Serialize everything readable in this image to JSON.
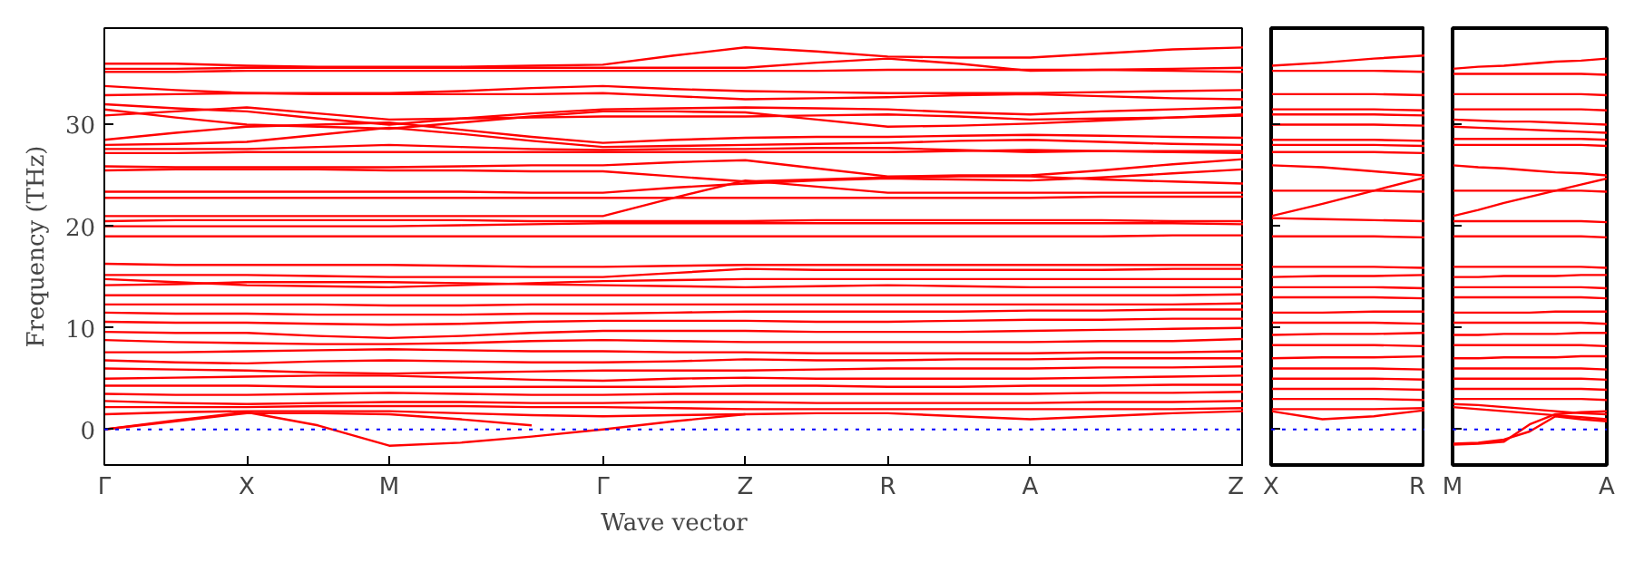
{
  "chart_data": [
    {
      "type": "line",
      "xlabel": "Wave vector",
      "ylabel": "Frequency (THz)",
      "color": "#ff0000",
      "categories": [
        "Γ",
        null,
        "X",
        null,
        "M",
        null,
        null,
        "Γ",
        null,
        "Z",
        null,
        "R",
        null,
        "A",
        null,
        null,
        "Z"
      ],
      "ylim": [
        -3.5,
        39.5
      ],
      "yticks": [
        0,
        10,
        20,
        30
      ],
      "ref_lines": [
        {
          "axis": "y",
          "value": 0,
          "color": "#0000ff",
          "line_style": "dotted"
        }
      ],
      "series": [
        {
          "values": [
            36.0,
            36.0,
            35.8,
            35.7,
            35.7,
            35.7,
            35.8,
            35.9,
            36.8,
            37.6,
            37.2,
            36.7,
            36.6,
            36.6,
            37.0,
            37.4,
            37.6
          ]
        },
        {
          "values": [
            35.5,
            35.5,
            35.6,
            35.6,
            35.6,
            35.6,
            35.6,
            35.6,
            35.6,
            35.6,
            36.1,
            36.5,
            36.0,
            35.3,
            35.4,
            35.5,
            35.6
          ]
        },
        {
          "values": [
            35.2,
            35.2,
            35.3,
            35.3,
            35.3,
            35.3,
            35.3,
            35.3,
            35.3,
            35.3,
            35.3,
            35.4,
            35.4,
            35.4,
            35.4,
            35.3,
            35.2
          ]
        },
        {
          "values": [
            33.8,
            33.4,
            33.1,
            33.1,
            33.1,
            33.3,
            33.6,
            33.8,
            33.5,
            33.3,
            33.2,
            33.1,
            33.1,
            33.1,
            33.2,
            33.3,
            33.4
          ]
        },
        {
          "values": [
            32.9,
            33.0,
            33.1,
            33.0,
            33.0,
            33.0,
            33.0,
            33.1,
            32.8,
            32.5,
            32.6,
            32.7,
            32.9,
            33.0,
            32.8,
            32.6,
            32.5
          ]
        },
        {
          "values": [
            32.0,
            31.6,
            31.3,
            30.6,
            30.0,
            30.6,
            31.1,
            31.5,
            31.6,
            31.7,
            31.6,
            31.5,
            31.2,
            31.0,
            31.3,
            31.5,
            31.7
          ]
        },
        {
          "values": [
            31.5,
            30.7,
            30.0,
            29.8,
            29.6,
            30.2,
            30.8,
            31.3,
            31.3,
            31.2,
            30.5,
            29.8,
            29.9,
            30.1,
            30.4,
            30.7,
            31.0
          ]
        },
        {
          "values": [
            30.9,
            31.3,
            31.7,
            31.1,
            30.5,
            30.6,
            30.7,
            30.8,
            30.8,
            30.8,
            30.9,
            31.0,
            30.8,
            30.5,
            30.6,
            30.7,
            30.9
          ]
        },
        {
          "values": [
            28.5,
            29.2,
            29.8,
            30.0,
            30.2,
            29.5,
            28.8,
            28.2,
            28.5,
            28.7,
            28.8,
            28.8,
            28.9,
            29.0,
            28.9,
            28.8,
            28.7
          ]
        },
        {
          "values": [
            28.0,
            28.1,
            28.3,
            29.0,
            29.7,
            29.1,
            28.4,
            27.8,
            27.9,
            28.0,
            28.1,
            28.2,
            28.4,
            28.5,
            28.3,
            28.1,
            28.0
          ]
        },
        {
          "values": [
            27.6,
            27.6,
            27.6,
            27.8,
            28.0,
            27.8,
            27.6,
            27.5,
            27.6,
            27.6,
            27.7,
            27.7,
            27.5,
            27.3,
            27.4,
            27.4,
            27.4
          ]
        },
        {
          "values": [
            27.2,
            27.2,
            27.3,
            27.3,
            27.3,
            27.3,
            27.3,
            27.3,
            27.3,
            27.3,
            27.3,
            27.3,
            27.4,
            27.5,
            27.4,
            27.3,
            27.2
          ]
        },
        {
          "values": [
            25.9,
            25.8,
            25.8,
            25.8,
            25.8,
            25.9,
            26.0,
            26.0,
            26.3,
            26.5,
            25.7,
            24.9,
            25.0,
            25.0,
            25.5,
            26.1,
            26.6
          ]
        },
        {
          "values": [
            25.5,
            25.6,
            25.6,
            25.6,
            25.5,
            25.5,
            25.4,
            25.4,
            24.9,
            24.4,
            24.6,
            24.8,
            24.9,
            24.9,
            24.6,
            24.4,
            24.2
          ]
        },
        {
          "values": [
            23.4,
            23.4,
            23.4,
            23.4,
            23.4,
            23.4,
            23.3,
            23.3,
            23.8,
            24.2,
            24.5,
            24.7,
            24.6,
            24.5,
            24.8,
            25.2,
            25.6
          ]
        },
        {
          "values": [
            22.8,
            22.8,
            22.8,
            22.8,
            22.8,
            22.8,
            22.8,
            22.8,
            22.8,
            22.8,
            22.8,
            22.8,
            22.8,
            22.8,
            22.9,
            22.9,
            22.9
          ]
        },
        {
          "values": [
            21.0,
            21.0,
            21.0,
            21.0,
            21.0,
            21.0,
            21.0,
            21.0,
            22.8,
            24.5,
            23.9,
            23.3,
            23.3,
            23.3,
            23.3,
            23.3,
            23.3
          ]
        },
        {
          "values": [
            20.5,
            20.6,
            20.6,
            20.6,
            20.6,
            20.6,
            20.5,
            20.5,
            20.5,
            20.5,
            20.6,
            20.6,
            20.6,
            20.6,
            20.6,
            20.5,
            20.5
          ]
        },
        {
          "values": [
            20.0,
            20.0,
            20.0,
            20.0,
            20.0,
            20.1,
            20.2,
            20.3,
            20.3,
            20.3,
            20.3,
            20.3,
            20.3,
            20.3,
            20.3,
            20.3,
            20.2
          ]
        },
        {
          "values": [
            19.0,
            19.0,
            19.0,
            19.0,
            19.0,
            19.0,
            19.0,
            19.0,
            19.0,
            19.0,
            19.0,
            19.0,
            19.0,
            19.0,
            19.0,
            19.1,
            19.1
          ]
        },
        {
          "values": [
            16.3,
            16.2,
            16.2,
            16.2,
            16.2,
            16.1,
            16.0,
            16.0,
            16.1,
            16.2,
            16.2,
            16.2,
            16.2,
            16.2,
            16.2,
            16.2,
            16.2
          ]
        },
        {
          "values": [
            15.2,
            15.2,
            15.2,
            15.1,
            15.0,
            15.0,
            15.0,
            15.0,
            15.4,
            15.8,
            15.7,
            15.7,
            15.7,
            15.7,
            15.7,
            15.8,
            15.8
          ]
        },
        {
          "values": [
            14.8,
            14.5,
            14.2,
            14.1,
            14.0,
            14.2,
            14.4,
            14.6,
            14.7,
            14.8,
            14.8,
            14.8,
            14.8,
            14.8,
            14.8,
            14.8,
            14.8
          ]
        },
        {
          "values": [
            14.2,
            14.3,
            14.5,
            14.5,
            14.5,
            14.4,
            14.3,
            14.2,
            14.1,
            14.0,
            14.1,
            14.2,
            14.1,
            14.0,
            14.0,
            14.0,
            14.0
          ]
        },
        {
          "values": [
            13.2,
            13.2,
            13.2,
            13.2,
            13.2,
            13.2,
            13.2,
            13.2,
            13.2,
            13.2,
            13.2,
            13.2,
            13.2,
            13.2,
            13.2,
            13.2,
            13.3
          ]
        },
        {
          "values": [
            12.3,
            12.3,
            12.3,
            12.3,
            12.2,
            12.2,
            12.3,
            12.3,
            12.3,
            12.3,
            12.3,
            12.3,
            12.3,
            12.3,
            12.3,
            12.3,
            12.4
          ]
        },
        {
          "values": [
            11.5,
            11.4,
            11.4,
            11.3,
            11.3,
            11.3,
            11.4,
            11.4,
            11.5,
            11.6,
            11.6,
            11.6,
            11.6,
            11.7,
            11.7,
            11.8,
            11.8
          ]
        },
        {
          "values": [
            10.6,
            10.5,
            10.5,
            10.4,
            10.3,
            10.4,
            10.6,
            10.7,
            10.7,
            10.7,
            10.6,
            10.6,
            10.7,
            10.8,
            10.8,
            10.9,
            10.9
          ]
        },
        {
          "values": [
            9.6,
            9.5,
            9.5,
            9.2,
            9.0,
            9.2,
            9.5,
            9.7,
            9.7,
            9.7,
            9.6,
            9.6,
            9.6,
            9.7,
            9.8,
            9.9,
            10.0
          ]
        },
        {
          "values": [
            8.8,
            8.6,
            8.5,
            8.4,
            8.4,
            8.5,
            8.7,
            8.8,
            8.7,
            8.6,
            8.6,
            8.6,
            8.6,
            8.6,
            8.7,
            8.7,
            8.9
          ]
        },
        {
          "values": [
            7.6,
            7.6,
            7.7,
            7.8,
            7.9,
            7.8,
            7.7,
            7.7,
            7.6,
            7.6,
            7.5,
            7.5,
            7.5,
            7.5,
            7.6,
            7.6,
            7.7
          ]
        },
        {
          "values": [
            6.8,
            6.6,
            6.5,
            6.7,
            6.8,
            6.7,
            6.6,
            6.6,
            6.7,
            6.9,
            6.8,
            6.8,
            6.9,
            6.9,
            7.0,
            7.0,
            7.0
          ]
        },
        {
          "values": [
            6.0,
            5.9,
            5.8,
            5.6,
            5.5,
            5.6,
            5.7,
            5.8,
            5.8,
            5.8,
            5.9,
            6.0,
            6.0,
            6.0,
            6.1,
            6.1,
            6.2
          ]
        },
        {
          "values": [
            5.0,
            5.1,
            5.2,
            5.3,
            5.3,
            5.1,
            4.9,
            4.8,
            5.0,
            5.1,
            5.0,
            5.0,
            5.0,
            5.0,
            5.1,
            5.2,
            5.3
          ]
        },
        {
          "values": [
            4.3,
            4.3,
            4.3,
            4.2,
            4.2,
            4.2,
            4.2,
            4.2,
            4.2,
            4.3,
            4.3,
            4.2,
            4.2,
            4.3,
            4.3,
            4.4,
            4.4
          ]
        },
        {
          "values": [
            3.5,
            3.4,
            3.4,
            3.5,
            3.6,
            3.5,
            3.4,
            3.4,
            3.5,
            3.5,
            3.5,
            3.5,
            3.5,
            3.5,
            3.6,
            3.6,
            3.7
          ]
        },
        {
          "values": [
            2.8,
            2.6,
            2.5,
            2.6,
            2.7,
            2.7,
            2.6,
            2.6,
            2.7,
            2.7,
            2.6,
            2.6,
            2.6,
            2.6,
            2.7,
            2.7,
            2.8
          ]
        },
        {
          "values": [
            2.2,
            2.2,
            2.2,
            2.3,
            2.3,
            2.3,
            2.2,
            2.2,
            2.1,
            2.0,
            2.0,
            2.0,
            2.0,
            2.0,
            2.0,
            2.0,
            2.1
          ]
        },
        {
          "values": [
            1.5,
            1.7,
            1.8,
            1.8,
            1.8,
            1.6,
            1.4,
            1.3,
            1.4,
            1.5,
            1.6,
            1.6,
            1.3,
            1.0,
            1.3,
            1.6,
            1.8
          ]
        },
        {
          "values": [
            0,
            0.9,
            1.7,
            0.4,
            -1.6,
            -1.3,
            -0.7,
            0,
            0.8,
            1.5,
            null,
            null,
            null,
            null,
            null,
            null,
            null
          ]
        },
        {
          "values": [
            0,
            0.8,
            1.6,
            1.6,
            1.5,
            1.0,
            0.4,
            null,
            null,
            null,
            null,
            null,
            null,
            null,
            null,
            null,
            null
          ]
        }
      ]
    },
    {
      "type": "line",
      "color": "#ff0000",
      "categories": [
        "X",
        null,
        null,
        "R"
      ],
      "ylim": [
        -3.5,
        39.5
      ],
      "yticks": [
        0,
        10,
        20,
        30
      ],
      "tick_labels": "x",
      "ref_lines": [
        {
          "axis": "y",
          "value": 0,
          "color": "#0000ff",
          "line_style": "dotted"
        }
      ],
      "series": [
        {
          "values": [
            35.8,
            36.1,
            36.5,
            36.8
          ]
        },
        {
          "values": [
            35.3,
            35.3,
            35.3,
            35.2
          ]
        },
        {
          "values": [
            33.0,
            33.0,
            33.0,
            32.9
          ]
        },
        {
          "values": [
            31.5,
            31.5,
            31.5,
            31.4
          ]
        },
        {
          "values": [
            31.0,
            31.0,
            31.0,
            30.9
          ]
        },
        {
          "values": [
            30.0,
            30.0,
            30.0,
            29.9
          ]
        },
        {
          "values": [
            28.5,
            28.5,
            28.5,
            28.4
          ]
        },
        {
          "values": [
            28.0,
            28.0,
            28.0,
            27.9
          ]
        },
        {
          "values": [
            27.3,
            27.3,
            27.3,
            27.2
          ]
        },
        {
          "values": [
            26.0,
            25.8,
            25.4,
            25.0
          ]
        },
        {
          "values": [
            23.5,
            23.5,
            23.5,
            23.4
          ]
        },
        {
          "values": [
            21.0,
            22.2,
            23.5,
            24.8
          ]
        },
        {
          "values": [
            20.8,
            20.7,
            20.6,
            20.5
          ]
        },
        {
          "values": [
            19.0,
            19.0,
            19.0,
            18.9
          ]
        },
        {
          "values": [
            16.0,
            16.0,
            16.0,
            15.9
          ]
        },
        {
          "values": [
            15.0,
            15.1,
            15.1,
            15.2
          ]
        },
        {
          "values": [
            14.0,
            14.0,
            14.0,
            13.9
          ]
        },
        {
          "values": [
            13.0,
            13.0,
            13.0,
            12.9
          ]
        },
        {
          "values": [
            11.5,
            11.5,
            11.6,
            11.6
          ]
        },
        {
          "values": [
            10.5,
            10.5,
            10.5,
            10.4
          ]
        },
        {
          "values": [
            9.3,
            9.4,
            9.4,
            9.5
          ]
        },
        {
          "values": [
            8.3,
            8.3,
            8.3,
            8.2
          ]
        },
        {
          "values": [
            7.0,
            7.1,
            7.1,
            7.2
          ]
        },
        {
          "values": [
            6.0,
            6.0,
            6.0,
            5.9
          ]
        },
        {
          "values": [
            5.0,
            5.0,
            5.0,
            4.9
          ]
        },
        {
          "values": [
            4.0,
            4.0,
            4.0,
            3.9
          ]
        },
        {
          "values": [
            3.0,
            3.0,
            3.0,
            2.9
          ]
        },
        {
          "values": [
            2.0,
            2.0,
            2.0,
            2.1
          ]
        },
        {
          "values": [
            1.8,
            1.0,
            1.3,
            1.9
          ]
        }
      ]
    },
    {
      "type": "line",
      "color": "#ff0000",
      "categories": [
        "M",
        null,
        null,
        null,
        null,
        null,
        "A"
      ],
      "ylim": [
        -3.5,
        39.5
      ],
      "yticks": [
        0,
        10,
        20,
        30
      ],
      "tick_labels": "x",
      "ref_lines": [
        {
          "axis": "y",
          "value": 0,
          "color": "#0000ff",
          "line_style": "dotted"
        }
      ],
      "series": [
        {
          "values": [
            35.5,
            35.7,
            35.8,
            36.0,
            36.2,
            36.3,
            36.5
          ]
        },
        {
          "values": [
            35.0,
            35.0,
            35.0,
            35.0,
            35.0,
            35.0,
            34.9
          ]
        },
        {
          "values": [
            33.0,
            33.0,
            33.0,
            33.0,
            33.0,
            33.0,
            32.9
          ]
        },
        {
          "values": [
            31.5,
            31.5,
            31.5,
            31.5,
            31.5,
            31.5,
            31.4
          ]
        },
        {
          "values": [
            30.5,
            30.4,
            30.3,
            30.3,
            30.2,
            30.1,
            30.0
          ]
        },
        {
          "values": [
            29.8,
            29.7,
            29.6,
            29.5,
            29.4,
            29.3,
            29.2
          ]
        },
        {
          "values": [
            28.6,
            28.6,
            28.6,
            28.6,
            28.6,
            28.6,
            28.5
          ]
        },
        {
          "values": [
            28.0,
            28.0,
            28.0,
            28.0,
            28.0,
            28.0,
            27.9
          ]
        },
        {
          "values": [
            26.0,
            25.8,
            25.7,
            25.5,
            25.3,
            25.2,
            25.0
          ]
        },
        {
          "values": [
            23.5,
            23.5,
            23.5,
            23.5,
            23.5,
            23.5,
            23.4
          ]
        },
        {
          "values": [
            21.0,
            21.6,
            22.3,
            22.9,
            23.5,
            24.1,
            24.7
          ]
        },
        {
          "values": [
            20.5,
            20.5,
            20.5,
            20.5,
            20.5,
            20.5,
            20.4
          ]
        },
        {
          "values": [
            19.0,
            19.0,
            19.0,
            19.0,
            19.0,
            19.0,
            18.9
          ]
        },
        {
          "values": [
            16.0,
            16.0,
            16.0,
            16.0,
            16.0,
            16.0,
            15.9
          ]
        },
        {
          "values": [
            15.0,
            15.0,
            15.1,
            15.1,
            15.1,
            15.2,
            15.2
          ]
        },
        {
          "values": [
            14.0,
            14.0,
            14.0,
            14.0,
            14.0,
            14.0,
            13.9
          ]
        },
        {
          "values": [
            13.0,
            13.0,
            13.0,
            13.0,
            13.0,
            13.0,
            12.9
          ]
        },
        {
          "values": [
            11.5,
            11.5,
            11.5,
            11.5,
            11.6,
            11.6,
            11.6
          ]
        },
        {
          "values": [
            10.5,
            10.5,
            10.5,
            10.5,
            10.5,
            10.5,
            10.4
          ]
        },
        {
          "values": [
            9.3,
            9.3,
            9.4,
            9.4,
            9.4,
            9.5,
            9.5
          ]
        },
        {
          "values": [
            8.3,
            8.3,
            8.3,
            8.3,
            8.3,
            8.3,
            8.2
          ]
        },
        {
          "values": [
            7.0,
            7.0,
            7.1,
            7.1,
            7.1,
            7.2,
            7.2
          ]
        },
        {
          "values": [
            6.0,
            6.0,
            6.0,
            6.0,
            6.0,
            6.0,
            5.9
          ]
        },
        {
          "values": [
            5.0,
            5.0,
            5.0,
            5.0,
            5.0,
            5.0,
            4.9
          ]
        },
        {
          "values": [
            4.0,
            4.0,
            4.0,
            4.0,
            4.0,
            4.0,
            3.9
          ]
        },
        {
          "values": [
            3.0,
            3.0,
            3.0,
            3.0,
            3.0,
            3.0,
            2.9
          ]
        },
        {
          "values": [
            2.5,
            2.4,
            2.2,
            2.0,
            1.8,
            1.6,
            1.5
          ]
        },
        {
          "values": [
            2.2,
            2.0,
            1.8,
            1.6,
            1.4,
            1.2,
            1.0
          ]
        },
        {
          "values": [
            -1.5,
            -1.4,
            -1.2,
            0.5,
            1.5,
            1.7,
            1.8
          ]
        },
        {
          "values": [
            -1.4,
            -1.3,
            -1.0,
            -0.2,
            1.3,
            1.0,
            0.8
          ]
        }
      ]
    }
  ]
}
